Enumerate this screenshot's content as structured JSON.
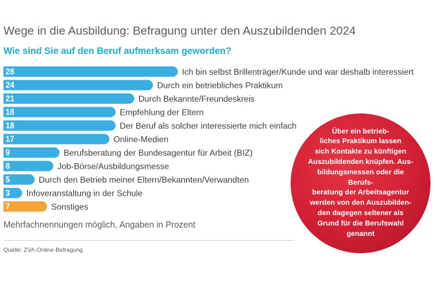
{
  "header": {
    "title": "Wege in die Ausbildung: Befragung unter den Auszubildenden 2024",
    "subtitle": "Wie sind Sie auf den Beruf aufmerksam geworden?"
  },
  "chart_data": {
    "type": "bar",
    "orientation": "horizontal",
    "categories": [
      "Ich bin selbst Brillenträger/Kunde und war deshalb interessiert",
      "Durch ein betriebliches Praktikum",
      "Durch Bekannte/Freundeskreis",
      "Empfehlung der Eltern",
      "Der Beruf als solcher interessierte mich einfach",
      "Online-Medien",
      "Berufsberatung der Bundesagentur für Arbeit (BIZ)",
      "Job-Börse/Ausbildungsmesse",
      "Durch den Betrieb meiner Eltern/Bekannten/Verwandten",
      "Infoveranstaltung in der Schule",
      "Sonstiges"
    ],
    "values": [
      28,
      24,
      21,
      18,
      18,
      17,
      9,
      8,
      5,
      3,
      7
    ],
    "colors": [
      "#3aaee0",
      "#3aaee0",
      "#3aaee0",
      "#3aaee0",
      "#3aaee0",
      "#3aaee0",
      "#3aaee0",
      "#3aaee0",
      "#3aaee0",
      "#3aaee0",
      "#f5a33a"
    ],
    "data_labels": true,
    "xlim": [
      0,
      28
    ],
    "grid": false,
    "legend": false
  },
  "footer": {
    "note": "Mehrfachnennungen möglich, Angaben in Prozent",
    "source": "Quelle: ZVA-Online-Befragung"
  },
  "callout": {
    "text": "Über ein betrieb-\nliches Praktikum lassen\nsich Kontakte zu künftigen\nAuszubildenden knüpfen. Aus-\nbildungsmessen oder die Berufs-\nberatung der Arbeitsagentur\nwerden von den Auszubilden-\nden dagegen seltener als\nGrund für die Berufswahl\ngenannt",
    "color": "#d21f34"
  }
}
